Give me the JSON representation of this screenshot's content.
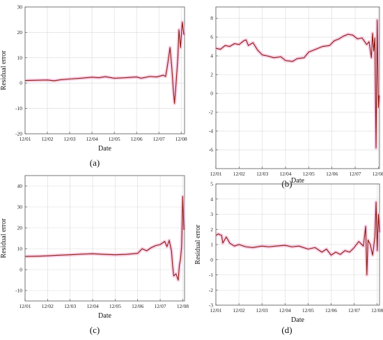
{
  "figure": {
    "colors": {
      "line": "#8b1a10",
      "band": "#f3a6cf",
      "grid": "#d9d9d9",
      "axis": "#555555"
    }
  },
  "chart_data": [
    {
      "id": "a",
      "panel_label": "(a)",
      "type": "line",
      "xlabel": "Date",
      "ylabel": "Residual error",
      "xticks": [
        "12/01",
        "12/02",
        "12/03",
        "12/04",
        "12/05",
        "12/06",
        "12/07",
        "12/08"
      ],
      "xlim": [
        0,
        7.15
      ],
      "ylim": [
        -20,
        30
      ],
      "yticks": [
        -20,
        -10,
        0,
        10,
        20,
        30
      ],
      "grid": true,
      "series": [
        {
          "x": [
            0,
            0.5,
            1,
            1.3,
            1.6,
            2,
            2.5,
            3,
            3.3,
            3.6,
            4,
            4.5,
            5,
            5.2,
            5.6,
            5.9,
            6.2,
            6.3,
            6.35,
            6.42,
            6.5,
            6.58,
            6.65,
            6.7,
            6.78,
            6.85,
            6.9,
            6.97,
            7.05,
            7.12
          ],
          "y": [
            1,
            1.1,
            1.2,
            0.9,
            1.3,
            1.6,
            1.9,
            2.3,
            2.1,
            2.5,
            1.9,
            2.1,
            2.4,
            1.9,
            2.6,
            2.4,
            3.1,
            2.6,
            5,
            9,
            14,
            6,
            -3,
            -8,
            1,
            10,
            21,
            14,
            24,
            19
          ]
        }
      ]
    },
    {
      "id": "b",
      "panel_label": "(b)",
      "type": "line",
      "xlabel": "Date",
      "ylabel": "",
      "xticks": [
        "12/01",
        "12/02",
        "12/03",
        "12/04",
        "12/05",
        "12/06",
        "12/07",
        "12/08"
      ],
      "xlim": [
        0,
        7.05
      ],
      "ylim": [
        -8,
        9.2
      ],
      "yticks": [
        -6,
        -4,
        -2,
        0,
        2,
        4,
        6,
        8
      ],
      "grid": true,
      "series": [
        {
          "x": [
            0,
            0.2,
            0.4,
            0.6,
            0.8,
            1,
            1.2,
            1.3,
            1.4,
            1.6,
            1.8,
            2,
            2.2,
            2.5,
            2.8,
            3,
            3.3,
            3.5,
            3.8,
            4,
            4.3,
            4.6,
            4.9,
            5.1,
            5.3,
            5.5,
            5.7,
            5.9,
            6.1,
            6.3,
            6.5,
            6.6,
            6.7,
            6.75,
            6.8,
            6.85,
            6.9,
            6.95,
            7.0,
            7.03
          ],
          "y": [
            4.8,
            4.7,
            5.1,
            5.0,
            5.3,
            5.2,
            5.6,
            5.7,
            5.1,
            5.4,
            4.6,
            4.1,
            4.0,
            3.8,
            3.9,
            3.5,
            3.4,
            3.7,
            3.8,
            4.4,
            4.7,
            5.0,
            5.1,
            5.6,
            5.8,
            6.1,
            6.3,
            6.2,
            5.8,
            5.9,
            5.2,
            5.5,
            3.8,
            6.4,
            4.5,
            5.9,
            -5.8,
            7.8,
            -1.5,
            -0.2
          ]
        }
      ]
    },
    {
      "id": "c",
      "panel_label": "(c)",
      "type": "line",
      "xlabel": "Date",
      "ylabel": "Residual error",
      "xticks": [
        "12/01",
        "12/02",
        "12/03",
        "12/04",
        "12/05",
        "12/06",
        "12/07",
        "12/08"
      ],
      "xlim": [
        0,
        7.08
      ],
      "ylim": [
        -15,
        45
      ],
      "yticks": [
        -10,
        0,
        10,
        20,
        30,
        40
      ],
      "grid": true,
      "series": [
        {
          "x": [
            0,
            0.5,
            1,
            1.5,
            2,
            2.5,
            3,
            3.5,
            4,
            4.5,
            5,
            5.2,
            5.4,
            5.6,
            5.8,
            6,
            6.2,
            6.3,
            6.4,
            6.5,
            6.55,
            6.6,
            6.7,
            6.8,
            6.85,
            6.9,
            6.95,
            7.0,
            7.05
          ],
          "y": [
            6.3,
            6.4,
            6.6,
            6.9,
            7.1,
            7.4,
            7.6,
            7.3,
            7.1,
            7.3,
            7.8,
            10,
            9,
            10.5,
            11.5,
            12,
            13.5,
            11,
            14,
            9,
            2,
            -3,
            -2,
            -5,
            2,
            5,
            11,
            35,
            19
          ]
        }
      ]
    },
    {
      "id": "d",
      "panel_label": "(d)",
      "type": "line",
      "xlabel": "Date",
      "ylabel": "Residual error",
      "xticks": [
        "12/01",
        "12/02",
        "12/03",
        "12/04",
        "12/05",
        "12/06",
        "12/07",
        "12/08"
      ],
      "xlim": [
        0,
        7.1
      ],
      "ylim": [
        -3,
        5
      ],
      "yticks": [
        -3,
        -2,
        -1,
        0,
        1,
        2,
        3,
        4,
        5
      ],
      "grid": true,
      "series": [
        {
          "x": [
            0,
            0.1,
            0.25,
            0.3,
            0.45,
            0.6,
            0.8,
            1,
            1.3,
            1.6,
            2,
            2.3,
            2.6,
            3,
            3.3,
            3.6,
            4,
            4.3,
            4.6,
            4.8,
            5,
            5.2,
            5.4,
            5.6,
            5.8,
            6,
            6.2,
            6.4,
            6.5,
            6.55,
            6.6,
            6.7,
            6.8,
            6.9,
            6.95,
            7.0,
            7.05,
            7.1
          ],
          "y": [
            1.6,
            1.7,
            1.6,
            1.1,
            1.5,
            1.1,
            0.9,
            1.0,
            0.85,
            0.8,
            0.9,
            0.85,
            0.9,
            0.95,
            0.85,
            0.9,
            0.7,
            0.8,
            0.5,
            0.7,
            0.3,
            0.5,
            0.35,
            0.6,
            0.5,
            0.8,
            1.2,
            0.9,
            2.2,
            -1.0,
            1.3,
            1.0,
            0.3,
            1.5,
            3.8,
            0.6,
            3.0,
            1.8
          ]
        }
      ]
    }
  ]
}
